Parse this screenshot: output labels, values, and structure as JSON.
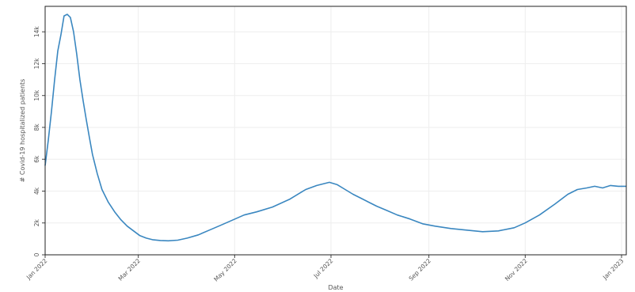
{
  "chart_data": {
    "type": "line",
    "title": "",
    "xlabel": "Date",
    "ylabel": "# Covid-19 hospitalized patients",
    "x_range": [
      "2022-01-01",
      "2023-01-04"
    ],
    "ylim": [
      0,
      15600
    ],
    "y_ticks": [
      0,
      2000,
      4000,
      6000,
      8000,
      10000,
      12000,
      14000
    ],
    "y_tick_labels": [
      "0",
      "2k",
      "4k",
      "6k",
      "8k",
      "10k",
      "12k",
      "14k"
    ],
    "x_ticks": [
      "2022-01-01",
      "2022-03-01",
      "2022-05-01",
      "2022-07-01",
      "2022-09-01",
      "2022-11-01",
      "2023-01-01"
    ],
    "x_tick_labels": [
      "Jan 2022",
      "Mar 2022",
      "May 2022",
      "Jul 2022",
      "Sep 2022",
      "Nov 2022",
      "Jan 2023"
    ],
    "grid": true,
    "legend": "none",
    "line_color": "#3a87c0",
    "series": [
      {
        "x": [
          "2022-01-01",
          "2022-01-03",
          "2022-01-05",
          "2022-01-07",
          "2022-01-09",
          "2022-01-11",
          "2022-01-13",
          "2022-01-15",
          "2022-01-17",
          "2022-01-19",
          "2022-01-21",
          "2022-01-23",
          "2022-01-25",
          "2022-01-27",
          "2022-01-29",
          "2022-01-31",
          "2022-02-03",
          "2022-02-06",
          "2022-02-10",
          "2022-02-14",
          "2022-02-18",
          "2022-02-22",
          "2022-02-26",
          "2022-03-02",
          "2022-03-06",
          "2022-03-10",
          "2022-03-15",
          "2022-03-20",
          "2022-03-26",
          "2022-04-01",
          "2022-04-08",
          "2022-04-15",
          "2022-04-22",
          "2022-04-29",
          "2022-05-07",
          "2022-05-15",
          "2022-05-25",
          "2022-06-05",
          "2022-06-15",
          "2022-06-22",
          "2022-06-30",
          "2022-07-05",
          "2022-07-10",
          "2022-07-15",
          "2022-07-20",
          "2022-07-25",
          "2022-07-30",
          "2022-08-05",
          "2022-08-12",
          "2022-08-20",
          "2022-08-28",
          "2022-09-05",
          "2022-09-15",
          "2022-09-25",
          "2022-10-05",
          "2022-10-15",
          "2022-10-25",
          "2022-11-01",
          "2022-11-10",
          "2022-11-20",
          "2022-11-28",
          "2022-12-04",
          "2022-12-10",
          "2022-12-15",
          "2022-12-20",
          "2022-12-25",
          "2022-12-30",
          "2023-01-04"
        ],
        "y": [
          5600,
          7200,
          9000,
          11000,
          12800,
          13800,
          15000,
          15100,
          14900,
          14000,
          12600,
          11000,
          9700,
          8500,
          7400,
          6300,
          5100,
          4100,
          3300,
          2700,
          2200,
          1800,
          1500,
          1200,
          1050,
          950,
          900,
          880,
          920,
          1050,
          1250,
          1550,
          1850,
          2150,
          2500,
          2700,
          3000,
          3500,
          4100,
          4350,
          4550,
          4400,
          4100,
          3800,
          3550,
          3300,
          3050,
          2800,
          2500,
          2250,
          1950,
          1800,
          1650,
          1550,
          1450,
          1500,
          1700,
          2000,
          2500,
          3200,
          3800,
          4100,
          4200,
          4300,
          4200,
          4350,
          4300,
          4300
        ]
      }
    ]
  }
}
